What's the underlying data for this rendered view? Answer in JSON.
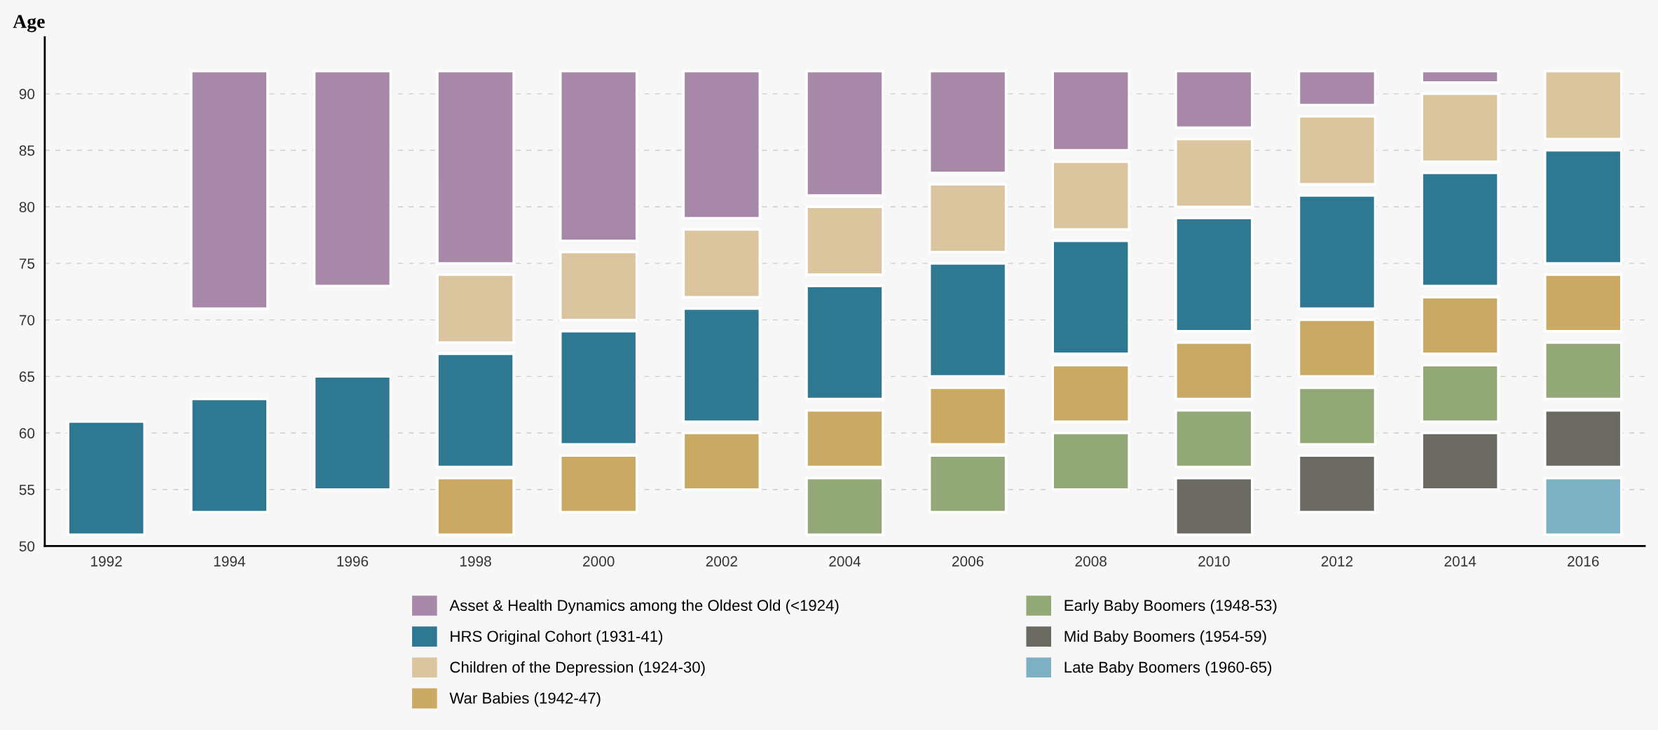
{
  "chart_data": {
    "type": "bar",
    "ylabel": "Age",
    "categories": [
      "1992",
      "1994",
      "1996",
      "1998",
      "2000",
      "2002",
      "2004",
      "2006",
      "2008",
      "2010",
      "2012",
      "2014",
      "2016"
    ],
    "series": [
      {
        "name": "Asset & Health Dynamics among the Oldest Old (<1924)",
        "color": "#a888a8",
        "base": [
          null,
          71,
          73,
          75,
          77,
          79,
          81,
          83,
          85,
          87,
          89,
          91,
          null
        ],
        "values": [
          null,
          21,
          19,
          17,
          15,
          13,
          11,
          9,
          7,
          5,
          3,
          1,
          null
        ]
      },
      {
        "name": "HRS Original Cohort (1931-41)",
        "color": "#2e7891",
        "base": [
          51,
          53,
          55,
          57,
          59,
          61,
          63,
          65,
          67,
          69,
          71,
          73,
          75
        ],
        "values": [
          10,
          10,
          10,
          10,
          10,
          10,
          10,
          10,
          10,
          10,
          10,
          10,
          10
        ]
      },
      {
        "name": "Children of the Depression (1924-30)",
        "color": "#dbc59e",
        "base": [
          null,
          null,
          null,
          68,
          70,
          72,
          74,
          76,
          78,
          80,
          82,
          84,
          86
        ],
        "values": [
          null,
          null,
          null,
          6,
          6,
          6,
          6,
          6,
          6,
          6,
          6,
          6,
          6
        ]
      },
      {
        "name": "War Babies (1942-47)",
        "color": "#c9a963",
        "base": [
          null,
          null,
          null,
          51,
          53,
          55,
          57,
          59,
          61,
          63,
          65,
          67,
          69
        ],
        "values": [
          null,
          null,
          null,
          5,
          5,
          5,
          5,
          5,
          5,
          5,
          5,
          5,
          5
        ]
      },
      {
        "name": "Early Baby Boomers (1948-53)",
        "color": "#93a877",
        "base": [
          null,
          null,
          null,
          null,
          null,
          null,
          51,
          53,
          55,
          57,
          59,
          61,
          63
        ],
        "values": [
          null,
          null,
          null,
          null,
          null,
          null,
          5,
          5,
          5,
          5,
          5,
          5,
          5
        ]
      },
      {
        "name": "Mid Baby Boomers (1954-59)",
        "color": "#6a6a62",
        "base": [
          null,
          null,
          null,
          null,
          null,
          null,
          null,
          null,
          null,
          51,
          53,
          55,
          57
        ],
        "values": [
          null,
          null,
          null,
          null,
          null,
          null,
          null,
          null,
          null,
          5,
          5,
          5,
          5
        ]
      },
      {
        "name": "Late Baby Boomers (1960-65)",
        "color": "#7eb0c4",
        "base": [
          null,
          null,
          null,
          null,
          null,
          null,
          null,
          null,
          null,
          null,
          null,
          null,
          51
        ],
        "values": [
          null,
          null,
          null,
          null,
          null,
          null,
          null,
          null,
          null,
          null,
          null,
          null,
          5
        ]
      }
    ],
    "ylim": [
      50,
      95
    ],
    "yticks": [
      50,
      55,
      60,
      65,
      70,
      75,
      80,
      85,
      90
    ],
    "grid": "y",
    "legend": "bottom"
  }
}
